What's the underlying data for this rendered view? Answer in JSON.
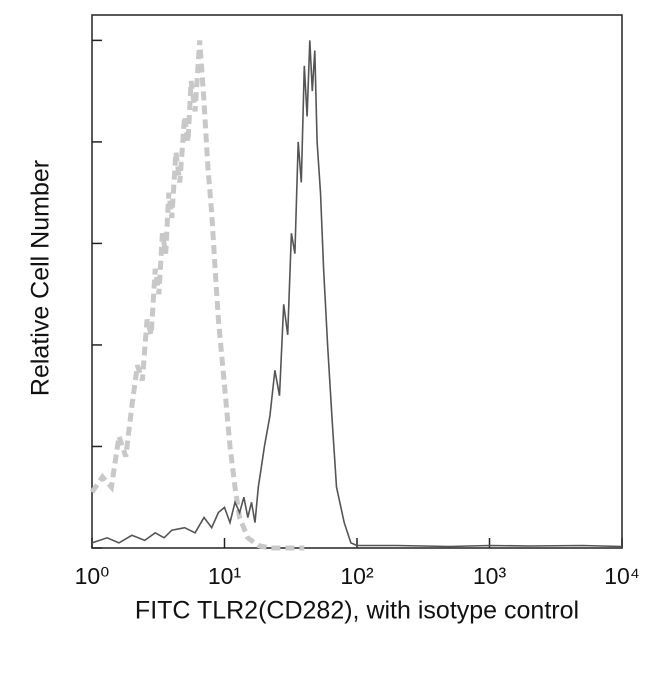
{
  "chart_data": {
    "type": "line",
    "x_label": "FITC TLR2(CD282), with isotype control",
    "y_label": "Relative Cell Number",
    "xscale": "log",
    "xlim": [
      1,
      10000
    ],
    "xticks": [
      {
        "value": 1,
        "label": "10⁰"
      },
      {
        "value": 10,
        "label": "10¹"
      },
      {
        "value": 100,
        "label": "10²"
      },
      {
        "value": 1000,
        "label": "10³"
      },
      {
        "value": 10000,
        "label": "10⁴"
      }
    ],
    "ylim": [
      0,
      105
    ],
    "yticks": [
      0,
      20,
      40,
      60,
      80,
      100
    ],
    "series": [
      {
        "color": "#c8c8c8",
        "dashed": true,
        "x": [
          1,
          1.2,
          1.4,
          1.6,
          1.8,
          2,
          2.2,
          2.4,
          2.6,
          2.8,
          3,
          3.2,
          3.4,
          3.6,
          3.8,
          4,
          4.3,
          4.6,
          5,
          5.3,
          5.6,
          6,
          6.5,
          7,
          7.5,
          8,
          8.5,
          9,
          10,
          11,
          12,
          13,
          15,
          18,
          22,
          30,
          40
        ],
        "values": [
          11,
          14,
          12,
          22,
          18,
          28,
          36,
          33,
          45,
          42,
          55,
          50,
          62,
          58,
          70,
          65,
          78,
          72,
          85,
          80,
          92,
          86,
          100,
          88,
          75,
          66,
          55,
          45,
          32,
          20,
          12,
          6,
          2,
          0.5,
          0,
          0,
          0
        ]
      },
      {
        "color": "#555555",
        "dashed": false,
        "x": [
          1,
          1.3,
          1.6,
          2,
          2.5,
          3,
          3.5,
          4,
          5,
          6,
          7,
          8,
          9,
          10,
          11,
          12,
          13,
          14,
          15,
          16,
          17,
          18,
          19,
          20,
          22,
          24,
          26,
          28,
          30,
          32,
          34,
          36,
          38,
          40,
          42,
          44,
          46,
          48,
          50,
          53,
          56,
          60,
          65,
          70,
          80,
          90,
          100,
          200,
          500,
          1000,
          2000,
          5000,
          10000
        ],
        "values": [
          1,
          2,
          1,
          2.5,
          1.5,
          3,
          2,
          3.5,
          4,
          3,
          6,
          4,
          7,
          8,
          5,
          9,
          7,
          10,
          6,
          9,
          5,
          12,
          16,
          20,
          26,
          35,
          30,
          48,
          42,
          62,
          58,
          80,
          72,
          95,
          85,
          100,
          90,
          98,
          80,
          70,
          55,
          40,
          25,
          12,
          5,
          1,
          0.5,
          0.5,
          0.3,
          0.5,
          0.4,
          0.5,
          0.3
        ]
      }
    ]
  }
}
